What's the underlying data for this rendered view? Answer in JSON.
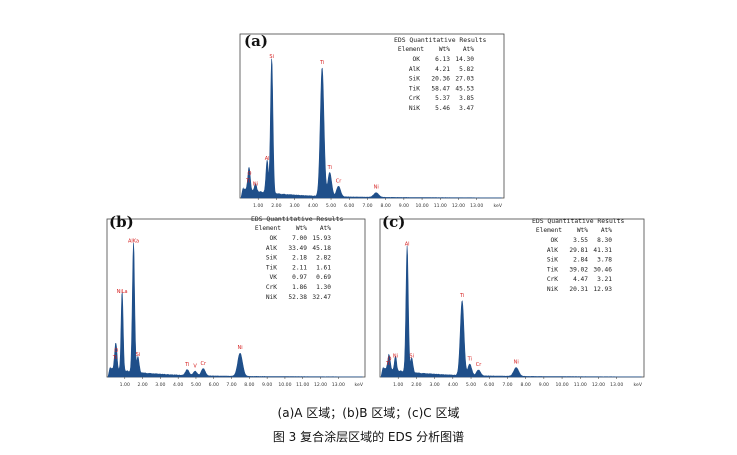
{
  "colors": {
    "spectrum": "#1f4f8a",
    "peak_label": "#d62020",
    "axis": "#333333",
    "frame": "#444444"
  },
  "captions": {
    "line1": "(a)A 区域；(b)B 区域；(c)C 区域",
    "line2": "图 3  复合涂层区域的 EDS 分析图谱"
  },
  "chart_data": [
    {
      "panel": "(a)",
      "type": "line",
      "xlabel": "keV",
      "xlim": [
        0,
        14.5
      ],
      "xticks": [
        "1.00",
        "2.00",
        "3.00",
        "4.00",
        "5.00",
        "6.00",
        "7.00",
        "8.00",
        "9.00",
        "10.00",
        "11.00",
        "12.00",
        "13.00"
      ],
      "peaks": [
        {
          "label": "O",
          "x": 0.52,
          "h": 0.12
        },
        {
          "label": "Ti",
          "x": 0.45,
          "h": 0.07
        },
        {
          "label": "Ni",
          "x": 0.85,
          "h": 0.05
        },
        {
          "label": "Al",
          "x": 1.49,
          "h": 0.22
        },
        {
          "label": "Si",
          "x": 1.74,
          "h": 0.9
        },
        {
          "label": "Ti",
          "x": 4.51,
          "h": 0.86
        },
        {
          "label": "Ti",
          "x": 4.93,
          "h": 0.16
        },
        {
          "label": "Cr",
          "x": 5.41,
          "h": 0.07
        },
        {
          "label": "Ni",
          "x": 7.48,
          "h": 0.03
        }
      ],
      "table": {
        "title": "EDS Quantitative Results",
        "headers": [
          "Element",
          "Wt%",
          "At%"
        ],
        "rows": [
          [
            "OK",
            "6.13",
            "14.30"
          ],
          [
            "AlK",
            "4.21",
            "5.82"
          ],
          [
            "SiK",
            "20.36",
            "27.03"
          ],
          [
            "TiK",
            "58.47",
            "45.53"
          ],
          [
            "CrK",
            "5.37",
            "3.85"
          ],
          [
            "NiK",
            "5.46",
            "3.47"
          ]
        ]
      }
    },
    {
      "panel": "(b)",
      "type": "line",
      "xlabel": "keV",
      "xlim": [
        0,
        14.5
      ],
      "xticks": [
        "1.00",
        "2.00",
        "3.00",
        "4.00",
        "5.00",
        "6.00",
        "7.00",
        "8.00",
        "9.00",
        "10.00",
        "11.00",
        "12.00",
        "13.00"
      ],
      "peaks": [
        {
          "label": "O",
          "x": 0.52,
          "h": 0.14
        },
        {
          "label": "Ti",
          "x": 0.45,
          "h": 0.09
        },
        {
          "label": "NiLa",
          "x": 0.85,
          "h": 0.55
        },
        {
          "label": "AlKa",
          "x": 1.49,
          "h": 0.9
        },
        {
          "label": "Si",
          "x": 1.74,
          "h": 0.11
        },
        {
          "label": "Ti",
          "x": 4.51,
          "h": 0.04
        },
        {
          "label": "V",
          "x": 4.95,
          "h": 0.03
        },
        {
          "label": "Cr",
          "x": 5.41,
          "h": 0.05
        },
        {
          "label": "Ni",
          "x": 7.48,
          "h": 0.16
        }
      ],
      "table": {
        "title": "EDS Quantitative Results",
        "headers": [
          "Element",
          "Wt%",
          "At%"
        ],
        "rows": [
          [
            "OK",
            "7.00",
            "15.93"
          ],
          [
            "AlK",
            "33.49",
            "45.18"
          ],
          [
            "SiK",
            "2.18",
            "2.82"
          ],
          [
            "TiK",
            "2.11",
            "1.61"
          ],
          [
            "VK",
            "0.97",
            "0.69"
          ],
          [
            "CrK",
            "1.86",
            "1.30"
          ],
          [
            "NiK",
            "52.38",
            "32.47"
          ]
        ]
      }
    },
    {
      "panel": "(c)",
      "type": "line",
      "xlabel": "keV",
      "xlim": [
        0,
        14.5
      ],
      "xticks": [
        "1.00",
        "2.00",
        "3.00",
        "4.00",
        "5.00",
        "6.00",
        "7.00",
        "8.00",
        "9.00",
        "10.00",
        "11.00",
        "12.00",
        "13.00"
      ],
      "peaks": [
        {
          "label": "O",
          "x": 0.52,
          "h": 0.08
        },
        {
          "label": "Ti",
          "x": 0.45,
          "h": 0.05
        },
        {
          "label": "Ni",
          "x": 0.85,
          "h": 0.1
        },
        {
          "label": "Al",
          "x": 1.49,
          "h": 0.88
        },
        {
          "label": "Si",
          "x": 1.74,
          "h": 0.1
        },
        {
          "label": "Ti",
          "x": 4.51,
          "h": 0.52
        },
        {
          "label": "Ti",
          "x": 4.93,
          "h": 0.08
        },
        {
          "label": "Cr",
          "x": 5.41,
          "h": 0.04
        },
        {
          "label": "Ni",
          "x": 7.48,
          "h": 0.06
        }
      ],
      "table": {
        "title": "EDS Quantitative Results",
        "headers": [
          "Element",
          "Wt%",
          "At%"
        ],
        "rows": [
          [
            "OK",
            "3.55",
            "8.30"
          ],
          [
            "AlK",
            "29.81",
            "41.31"
          ],
          [
            "SiK",
            "2.84",
            "3.78"
          ],
          [
            "TiK",
            "39.02",
            "30.46"
          ],
          [
            "CrK",
            "4.47",
            "3.21"
          ],
          [
            "NiK",
            "20.31",
            "12.93"
          ]
        ]
      }
    }
  ]
}
